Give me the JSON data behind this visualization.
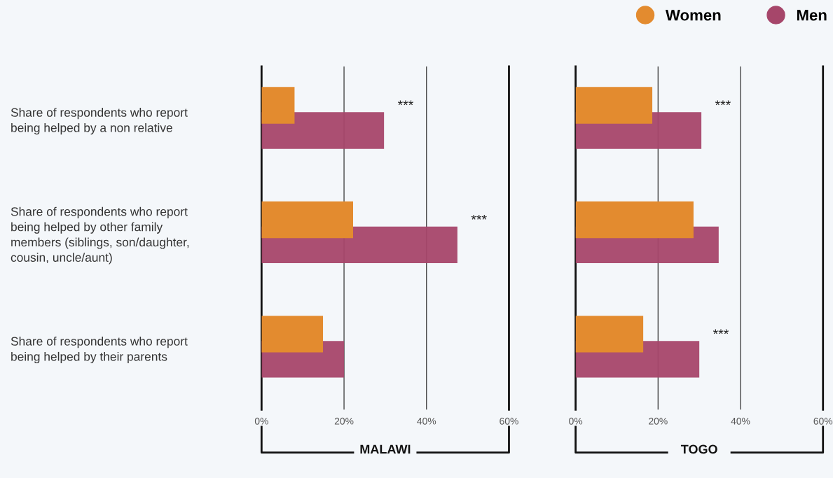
{
  "chart_data": [
    {
      "type": "bar",
      "orientation": "horizontal",
      "title": "MALAWI",
      "categories": [
        "Share of respondents who report\nbeing helped by a non relative",
        "Share of respondents who report\nbeing helped by other family\nmembers (siblings, son/daughter,\ncousin, uncle/aunt)",
        "Share of respondents who report\nbeing helped by their parents"
      ],
      "series": [
        {
          "name": "Women",
          "color": "#e38b2f",
          "values": [
            8.0,
            22.2,
            14.9
          ]
        },
        {
          "name": "Men",
          "color": "#a6466a",
          "values": [
            29.7,
            47.5,
            20.0
          ]
        }
      ],
      "xlim": [
        0,
        60
      ],
      "xticks": [
        {
          "value": 0,
          "label": "0%"
        },
        {
          "value": 20,
          "label": "20%"
        },
        {
          "value": 40,
          "label": "40%"
        },
        {
          "value": 60,
          "label": "60%"
        }
      ],
      "grid": "x",
      "legend": "top right",
      "annotations": [
        {
          "text": "***",
          "x": 29.7,
          "y": "Share of respondents who report\nbeing helped by a non relative"
        },
        {
          "text": "***",
          "x": 47.5,
          "y": "Share of respondents who report\nbeing helped by other family\nmembers (siblings, son/daughter,\ncousin, uncle/aunt)"
        }
      ]
    },
    {
      "type": "bar",
      "orientation": "horizontal",
      "title": "TOGO",
      "categories": [
        "Share of respondents who report\nbeing helped by a non relative",
        "Share of respondents who report\nbeing helped by other family\nmembers (siblings, son/daughter,\ncousin, uncle/aunt)",
        "Share of respondents who report\nbeing helped by their parents"
      ],
      "series": [
        {
          "name": "Women",
          "color": "#e38b2f",
          "values": [
            18.6,
            28.6,
            16.4
          ]
        },
        {
          "name": "Men",
          "color": "#a6466a",
          "values": [
            30.5,
            34.7,
            30.0
          ]
        }
      ],
      "xlim": [
        0,
        60
      ],
      "xticks": [
        {
          "value": 0,
          "label": "0%"
        },
        {
          "value": 20,
          "label": "20%"
        },
        {
          "value": 40,
          "label": "40%"
        },
        {
          "value": 60,
          "label": "60%"
        }
      ],
      "grid": "x",
      "tick_labels": "x",
      "annotations": [
        {
          "text": "***",
          "x": 30.5,
          "y": "Share of respondents who report\nbeing helped by a non relative"
        },
        {
          "text": "***",
          "x": 30.0,
          "y": "Share of respondents who report\nbeing helped by their parents"
        }
      ]
    }
  ]
}
